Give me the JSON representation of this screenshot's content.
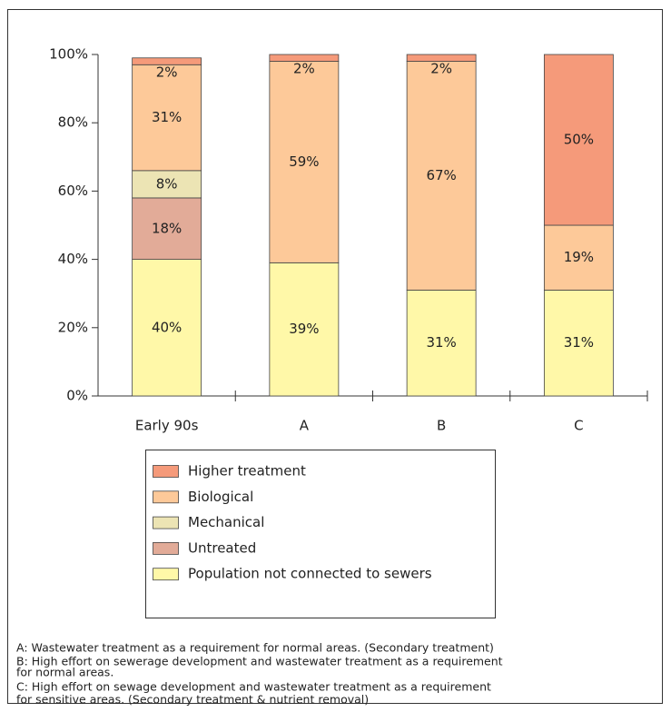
{
  "chart_data": {
    "type": "stacked_bar",
    "categories": [
      "Early 90s",
      "A",
      "B",
      "C"
    ],
    "series": [
      {
        "name": "Population not connected to sewers",
        "color": "#fff8a8",
        "values": [
          40,
          39,
          31,
          31
        ],
        "value_labels": [
          "40%",
          "39%",
          "31%",
          "31%"
        ]
      },
      {
        "name": "Untreated",
        "color": "#e2ab98",
        "values": [
          18,
          0,
          0,
          0
        ],
        "value_labels": [
          "18%",
          null,
          null,
          null
        ]
      },
      {
        "name": "Mechanical",
        "color": "#ece4b4",
        "values": [
          8,
          0,
          0,
          0
        ],
        "value_labels": [
          "8%",
          null,
          null,
          null
        ]
      },
      {
        "name": "Biological",
        "color": "#fdc999",
        "values": [
          31,
          59,
          67,
          19
        ],
        "value_labels": [
          "31%",
          "59%",
          "67%",
          "19%"
        ]
      },
      {
        "name": "Higher treatment",
        "color": "#f59a7a",
        "values": [
          2,
          2,
          2,
          50
        ],
        "value_labels": [
          "2%",
          "2%",
          "2%",
          "50%"
        ]
      }
    ],
    "ylim": [
      0,
      100
    ],
    "yticks": [
      {
        "value": 0,
        "label": "0%"
      },
      {
        "value": 20,
        "label": "20%"
      },
      {
        "value": 40,
        "label": "40%"
      },
      {
        "value": 60,
        "label": "60%"
      },
      {
        "value": 80,
        "label": "80%"
      },
      {
        "value": 100,
        "label": "100%"
      }
    ],
    "notes": [
      "A: Wastewater treatment as a requirement for normal areas. (Secondary treatment)",
      "B: High effort on sewerage development and wastewater treatment as a requirement",
      "for normal areas.",
      "C: High effort on sewage development and wastewater treatment as a requirement",
      "for sensitive areas. (Secondary treatment & nutrient removal)"
    ]
  }
}
